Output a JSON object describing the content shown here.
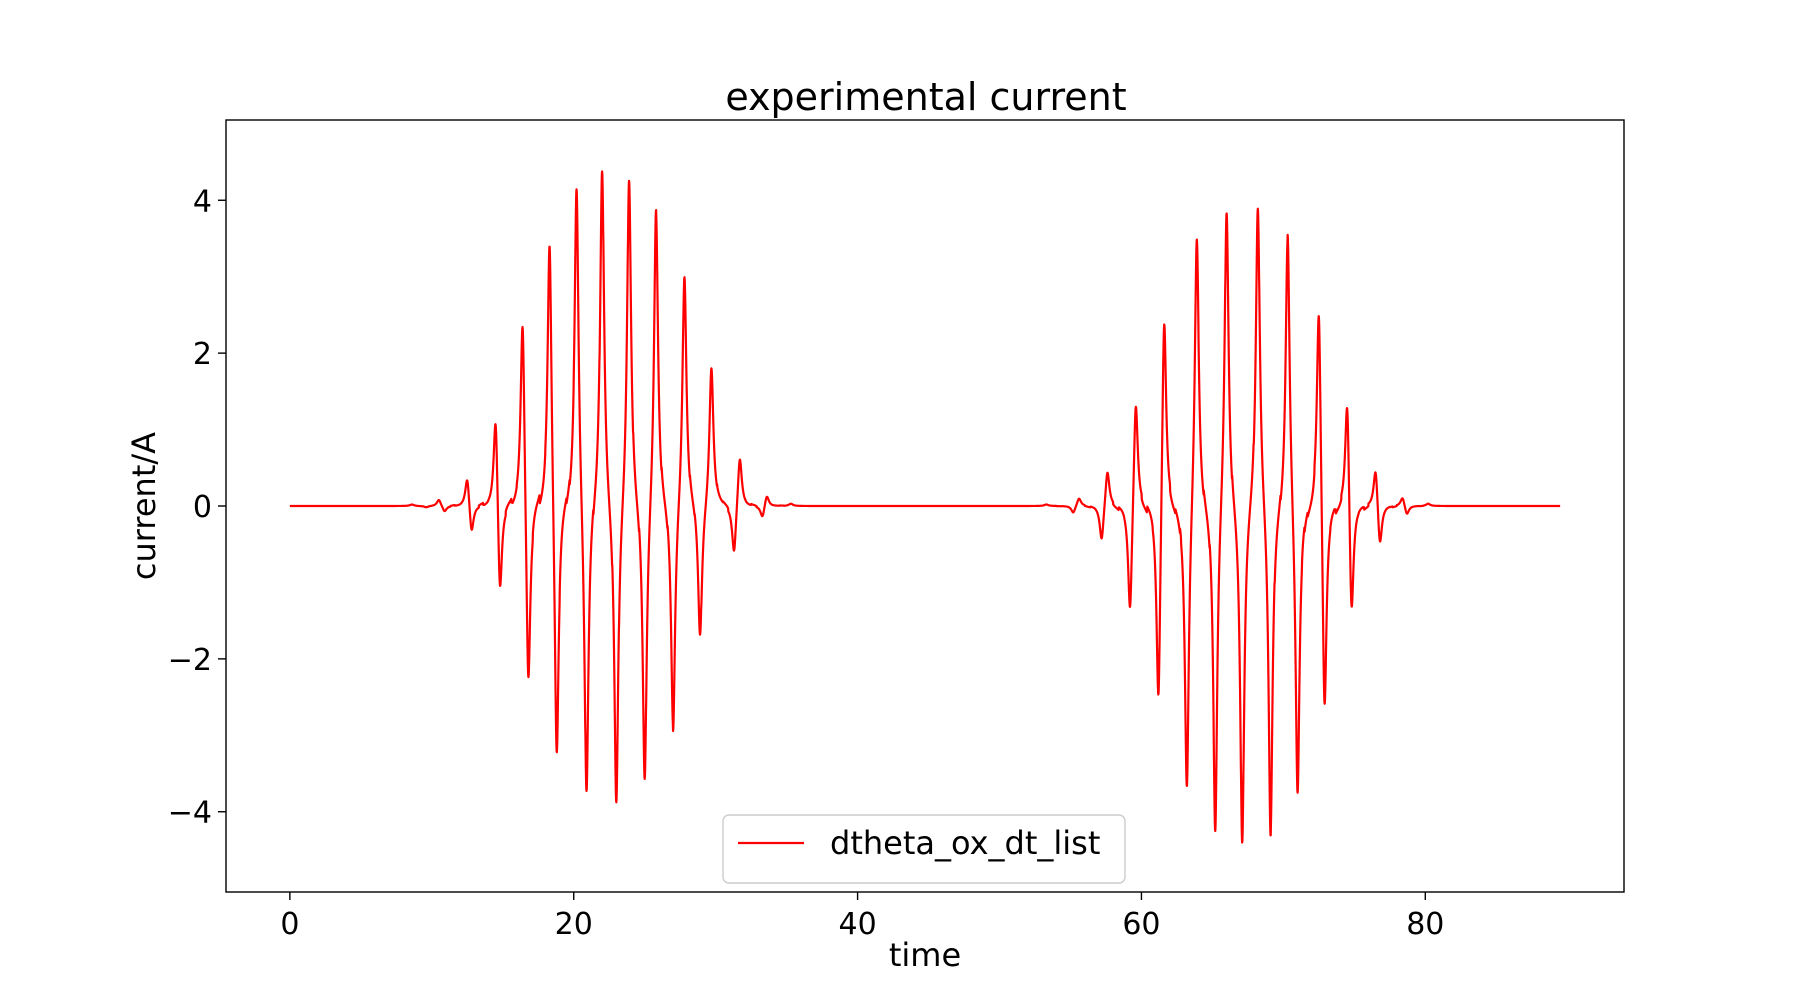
{
  "chart_data": {
    "type": "line",
    "title": "experimental current",
    "xlabel": "time",
    "ylabel": "current/A",
    "xlim": [
      -4.5,
      94
    ],
    "ylim": [
      -5.05,
      5.05
    ],
    "xticks": [
      0,
      20,
      40,
      60,
      80
    ],
    "xtick_labels": [
      "0",
      "20",
      "40",
      "60",
      "80"
    ],
    "yticks": [
      -4,
      -2,
      0,
      2,
      4
    ],
    "ytick_labels": [
      "−4",
      "−2",
      "0",
      "2",
      "4"
    ],
    "grid": false,
    "legend_position": "lower center",
    "series": [
      {
        "name": "dtheta_ox_dt_list",
        "color": "#ff0000",
        "x_range": [
          0,
          89.5
        ],
        "peaks": [
          {
            "t": 8.6,
            "v": 0.02
          },
          {
            "t": 9.6,
            "v": -0.02
          },
          {
            "t": 10.5,
            "v": 0.09
          },
          {
            "t": 10.9,
            "v": -0.08
          },
          {
            "t": 12.5,
            "v": 0.43
          },
          {
            "t": 12.8,
            "v": -0.41
          },
          {
            "t": 14.5,
            "v": 1.39
          },
          {
            "t": 14.8,
            "v": -1.37
          },
          {
            "t": 16.4,
            "v": 2.74
          },
          {
            "t": 16.8,
            "v": -2.65
          },
          {
            "t": 18.3,
            "v": 3.77
          },
          {
            "t": 18.8,
            "v": -3.61
          },
          {
            "t": 20.2,
            "v": 4.37
          },
          {
            "t": 20.9,
            "v": -4.08
          },
          {
            "t": 22.0,
            "v": 4.59
          },
          {
            "t": 23.0,
            "v": -4.16
          },
          {
            "t": 23.9,
            "v": 4.49
          },
          {
            "t": 25.0,
            "v": -3.85
          },
          {
            "t": 25.8,
            "v": 4.04
          },
          {
            "t": 27.0,
            "v": -3.08
          },
          {
            "t": 27.8,
            "v": 3.17
          },
          {
            "t": 28.9,
            "v": -1.84
          },
          {
            "t": 29.7,
            "v": 1.88
          },
          {
            "t": 31.3,
            "v": -0.69
          },
          {
            "t": 31.7,
            "v": 0.71
          },
          {
            "t": 33.3,
            "v": -0.17
          },
          {
            "t": 33.6,
            "v": 0.16
          },
          {
            "t": 35.3,
            "v": 0.03
          },
          {
            "t": 53.3,
            "v": 0.02
          },
          {
            "t": 55.2,
            "v": -0.1
          },
          {
            "t": 55.6,
            "v": 0.11
          },
          {
            "t": 57.2,
            "v": -0.5
          },
          {
            "t": 57.6,
            "v": 0.51
          },
          {
            "t": 59.2,
            "v": -1.55
          },
          {
            "t": 59.6,
            "v": 1.53
          },
          {
            "t": 61.2,
            "v": -2.89
          },
          {
            "t": 61.6,
            "v": 2.81
          },
          {
            "t": 63.2,
            "v": -3.87
          },
          {
            "t": 63.9,
            "v": 3.7
          },
          {
            "t": 65.2,
            "v": -4.43
          },
          {
            "t": 66.0,
            "v": 4.13
          },
          {
            "t": 67.1,
            "v": -4.6
          },
          {
            "t": 68.2,
            "v": 4.15
          },
          {
            "t": 69.1,
            "v": -4.46
          },
          {
            "t": 70.3,
            "v": 3.77
          },
          {
            "t": 71.0,
            "v": -3.96
          },
          {
            "t": 72.5,
            "v": 2.94
          },
          {
            "t": 72.9,
            "v": -3.03
          },
          {
            "t": 74.5,
            "v": 1.68
          },
          {
            "t": 74.8,
            "v": -1.71
          },
          {
            "t": 76.5,
            "v": 0.58
          },
          {
            "t": 76.8,
            "v": -0.6
          },
          {
            "t": 78.4,
            "v": 0.13
          },
          {
            "t": 78.7,
            "v": -0.13
          },
          {
            "t": 80.2,
            "v": 0.03
          }
        ]
      }
    ]
  }
}
